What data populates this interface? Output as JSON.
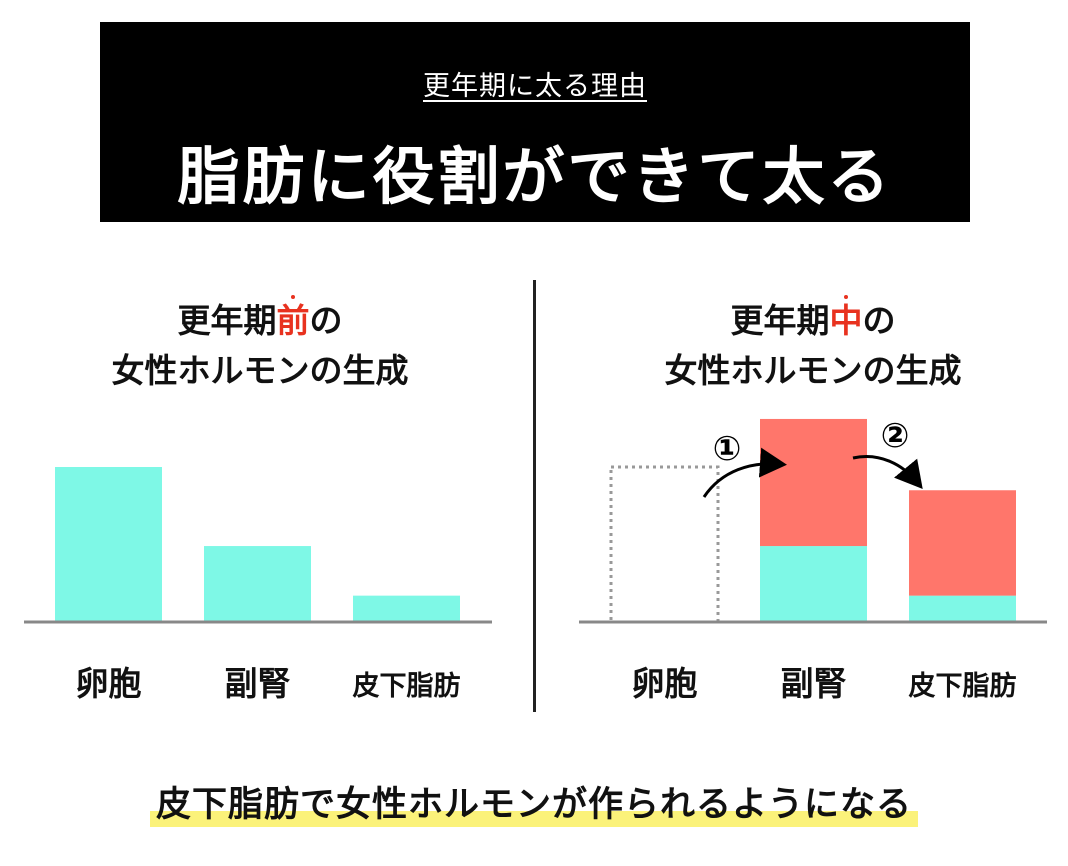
{
  "banner": {
    "subtitle": "更年期に太る理由",
    "title": "脂肪に役割ができて太る"
  },
  "left_panel": {
    "title_prefix": "更年期",
    "title_highlight": "前",
    "title_suffix": "の",
    "title_line2": "女性ホルモンの生成"
  },
  "right_panel": {
    "title_prefix": "更年期",
    "title_highlight": "中",
    "title_suffix": "の",
    "title_line2": "女性ホルモンの生成"
  },
  "footer": {
    "text": "皮下脂肪で女性ホルモンが作られるようになる"
  },
  "colors": {
    "teal": "#7ef8e6",
    "red": "#ff766b",
    "accent": "#e8321f",
    "highlight": "#fbf27a"
  },
  "chart_data": [
    {
      "type": "bar",
      "categories": [
        "卵胞",
        "副腎",
        "皮下脂肪"
      ],
      "series": [
        {
          "values": [
            100,
            49,
            17
          ],
          "color": "#7ef8e6"
        }
      ],
      "ylim": [
        0,
        130
      ]
    },
    {
      "type": "bar",
      "categories": [
        "卵胞",
        "副腎",
        "皮下脂肪"
      ],
      "series": [
        {
          "values": [
            0,
            49,
            17
          ],
          "color": "#7ef8e6"
        },
        {
          "values": [
            0,
            82,
            68
          ],
          "color": "#ff766b"
        }
      ],
      "previous_level": [
        100,
        null,
        null
      ],
      "annotations": [
        "①",
        "②"
      ],
      "ylim": [
        0,
        130
      ]
    }
  ]
}
